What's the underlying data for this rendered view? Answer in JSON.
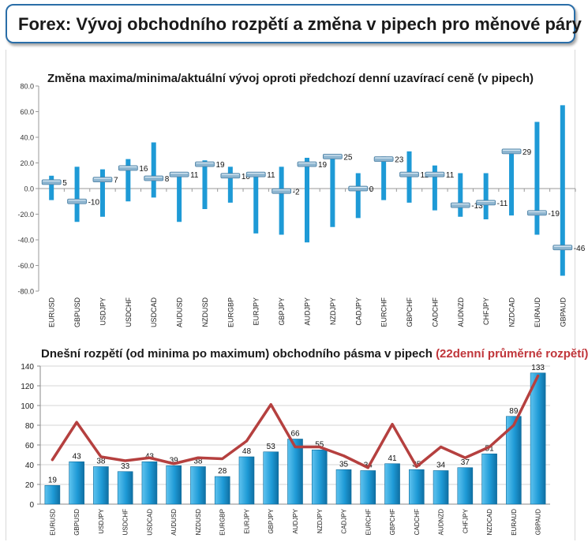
{
  "header": {
    "title": "Forex: Vývoj obchodního rozpětí a změna v pipech pro měnové páry"
  },
  "colors": {
    "bar": "#1e9ad6",
    "bar_dark": "#0f6fa3",
    "line": "#b5403f",
    "marker": "#8fb6d0",
    "title_accent": "#c0353a"
  },
  "chart_data": [
    {
      "type": "bar",
      "title": "Změna maxima/minima/aktuální vývoj oproti předchozí denní uzavírací ceně (v pipech)",
      "ylim": [
        -80,
        80
      ],
      "yticks": [
        "80.0",
        "60.0",
        "40.0",
        "20.0",
        "0.0",
        "-20.0",
        "-40.0",
        "-60.0",
        "-80.0"
      ],
      "categories": [
        "EURUSD",
        "GBPUSD",
        "USDJPY",
        "USDCHF",
        "USDCAD",
        "AUDUSD",
        "NZDUSD",
        "EURGBP",
        "EURJPY",
        "GBPJPY",
        "AUDJPY",
        "NZDJPY",
        "CADJPY",
        "EURCHF",
        "GBPCHF",
        "CADCHF",
        "AUDNZD",
        "CHFJPY",
        "NZDCAD",
        "EURAUD",
        "GBPAUD"
      ],
      "high": [
        10,
        17,
        15,
        23,
        36,
        12,
        22,
        17,
        12,
        17,
        24,
        25,
        12,
        25,
        29,
        18,
        12,
        12,
        30,
        52,
        65
      ],
      "low": [
        -9,
        -26,
        -22,
        -10,
        -7,
        -26,
        -16,
        -11,
        -35,
        -36,
        -42,
        -30,
        -23,
        -9,
        -11,
        -17,
        -22,
        -24,
        -21,
        -36,
        -68
      ],
      "current": [
        5,
        -10,
        7,
        16,
        8,
        11,
        19,
        10,
        11,
        -2,
        19,
        25,
        0,
        23,
        11,
        11,
        -13,
        -11,
        29,
        -19,
        -46
      ],
      "current_labels": [
        "5",
        "-10",
        "7",
        "16",
        "8",
        "11",
        "19",
        "10",
        "11",
        "-2",
        "19",
        "25",
        "0",
        "23",
        "11",
        "11",
        "-13",
        "-11",
        "29",
        "-19",
        "-46"
      ]
    },
    {
      "type": "bar",
      "title": "Dnešní rozpětí (od minima po maximum) obchodního pásma v pipech",
      "title_suffix": "(22denní průměrné rozpětí)",
      "ylim": [
        0,
        140
      ],
      "yticks": [
        "140",
        "120",
        "100",
        "80",
        "60",
        "40",
        "20",
        "0"
      ],
      "categories": [
        "EURUSD",
        "GBPUSD",
        "USDJPY",
        "USDCHF",
        "USDCAD",
        "AUDUSD",
        "NZDUSD",
        "EURGBP",
        "EURJPY",
        "GBPJPY",
        "AUDJPY",
        "NZDJPY",
        "CADJPY",
        "EURCHF",
        "GBPCHF",
        "CADCHF",
        "AUDNZD",
        "CHFJPY",
        "NZDCAD",
        "EURAUD",
        "GBPAUD"
      ],
      "values": [
        19,
        43,
        38,
        33,
        43,
        39,
        38,
        28,
        48,
        53,
        66,
        55,
        35,
        34,
        41,
        35,
        34,
        37,
        51,
        89,
        133
      ],
      "value_labels": [
        "19",
        "43",
        "38",
        "33",
        "43",
        "39",
        "38",
        "28",
        "48",
        "53",
        "66",
        "55",
        "35",
        "34",
        "41",
        "35",
        "34",
        "37",
        "51",
        "89",
        "133"
      ],
      "avg22": [
        45,
        83,
        48,
        44,
        47,
        41,
        47,
        46,
        64,
        101,
        58,
        58,
        49,
        37,
        81,
        38,
        58,
        47,
        58,
        80,
        130
      ]
    }
  ]
}
